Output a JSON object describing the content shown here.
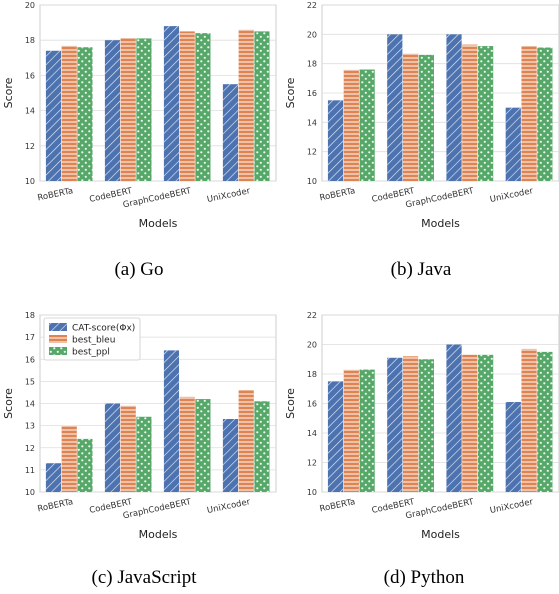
{
  "colors": {
    "blue": "#4c72b0",
    "orange": "#dd8452",
    "green": "#55a868",
    "grid": "#dddddd",
    "axis": "#cccccc"
  },
  "legend": [
    "CAT-score(Φx)",
    "best_bleu",
    "best_ppl"
  ],
  "chart_data": [
    {
      "type": "bar",
      "caption": "(a)  Go",
      "categories": [
        "RoBERTa",
        "CodeBERT",
        "GraphCodeBERT",
        "UniXcoder"
      ],
      "series": [
        {
          "name": "CAT-score(Φx)",
          "values": [
            17.4,
            18.0,
            18.8,
            15.5
          ]
        },
        {
          "name": "best_bleu",
          "values": [
            17.7,
            18.1,
            18.5,
            18.6
          ]
        },
        {
          "name": "best_ppl",
          "values": [
            17.6,
            18.1,
            18.4,
            18.5
          ]
        }
      ],
      "ylim": [
        10,
        20
      ],
      "yticks": [
        10,
        12,
        14,
        16,
        18,
        20
      ],
      "xlabel": "Models",
      "ylabel": "Score",
      "legend": false
    },
    {
      "type": "bar",
      "caption": "(b)  Java",
      "categories": [
        "RoBERTa",
        "CodeBERT",
        "GraphCodeBERT",
        "UniXcoder"
      ],
      "series": [
        {
          "name": "CAT-score(Φx)",
          "values": [
            15.5,
            20.0,
            20.0,
            15.0
          ]
        },
        {
          "name": "best_bleu",
          "values": [
            17.6,
            18.7,
            19.3,
            19.2
          ]
        },
        {
          "name": "best_ppl",
          "values": [
            17.6,
            18.6,
            19.2,
            19.1
          ]
        }
      ],
      "ylim": [
        10,
        22
      ],
      "yticks": [
        10,
        12,
        14,
        16,
        18,
        20,
        22
      ],
      "xlabel": "Models",
      "ylabel": "Score",
      "legend": false
    },
    {
      "type": "bar",
      "caption": "(c)  JavaScript",
      "categories": [
        "RoBERTa",
        "CodeBERT",
        "GraphCodeBERT",
        "UniXcoder"
      ],
      "series": [
        {
          "name": "CAT-score(Φx)",
          "values": [
            11.3,
            14.0,
            16.4,
            13.3
          ]
        },
        {
          "name": "best_bleu",
          "values": [
            13.0,
            13.9,
            14.3,
            14.6
          ]
        },
        {
          "name": "best_ppl",
          "values": [
            12.4,
            13.4,
            14.2,
            14.1
          ]
        }
      ],
      "ylim": [
        10,
        18
      ],
      "yticks": [
        10,
        11,
        12,
        13,
        14,
        15,
        16,
        17,
        18
      ],
      "xlabel": "Models",
      "ylabel": "Score",
      "legend": true,
      "legend_position": "top-left"
    },
    {
      "type": "bar",
      "caption": "(d)  Python",
      "categories": [
        "RoBERTa",
        "CodeBERT",
        "GraphCodeBERT",
        "UniXcoder"
      ],
      "series": [
        {
          "name": "CAT-score(Φx)",
          "values": [
            17.5,
            19.1,
            20.0,
            16.1
          ]
        },
        {
          "name": "best_bleu",
          "values": [
            18.3,
            19.2,
            19.3,
            19.7
          ]
        },
        {
          "name": "best_ppl",
          "values": [
            18.3,
            19.0,
            19.3,
            19.5
          ]
        }
      ],
      "ylim": [
        10,
        22
      ],
      "yticks": [
        10,
        12,
        14,
        16,
        18,
        20,
        22
      ],
      "xlabel": "Models",
      "ylabel": "Score",
      "legend": false
    }
  ]
}
